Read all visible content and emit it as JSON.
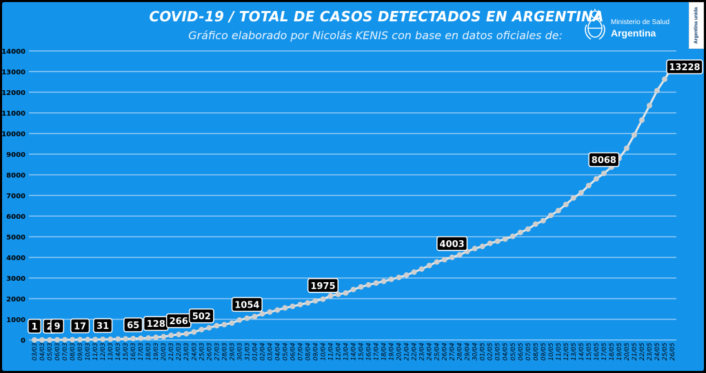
{
  "header": {
    "title": "COVID-19  /  TOTAL DE CASOS DETECTADOS EN ARGENTINA",
    "subtitle": "Gráfico elaborado por Nicolás KENIS con base en datos oficiales de:"
  },
  "ministry": {
    "line1": "Ministerio de Salud",
    "line2": "Argentina",
    "emblem_icon": "argentina-coat-of-arms-icon"
  },
  "badge": {
    "text": "Argentina unida"
  },
  "colors": {
    "background": "#1493ea",
    "gridline": "#cfe6fb",
    "line": "#e6e6e6",
    "marker": "#cfcfcf",
    "callout_bg": "#000000",
    "callout_text": "#ffffff"
  },
  "chart_data": {
    "type": "line",
    "title": "COVID-19  /  TOTAL DE CASOS DETECTADOS EN ARGENTINA",
    "xlabel": "",
    "ylabel": "",
    "ylim": [
      0,
      14000
    ],
    "yticks": [
      0,
      1000,
      2000,
      3000,
      4000,
      5000,
      6000,
      7000,
      8000,
      9000,
      10000,
      11000,
      12000,
      13000,
      14000
    ],
    "grid": true,
    "legend": "none",
    "x": [
      "03/03",
      "04/03",
      "05/03",
      "06/03",
      "07/03",
      "08/03",
      "09/03",
      "10/03",
      "11/03",
      "12/03",
      "13/03",
      "14/03",
      "15/03",
      "16/03",
      "17/03",
      "18/03",
      "19/03",
      "20/03",
      "21/03",
      "22/03",
      "23/03",
      "24/03",
      "25/03",
      "26/03",
      "27/03",
      "28/03",
      "29/03",
      "30/03",
      "31/03",
      "01/04",
      "02/04",
      "03/04",
      "04/04",
      "05/04",
      "06/04",
      "07/04",
      "08/04",
      "09/04",
      "10/04",
      "11/04",
      "12/04",
      "13/04",
      "14/04",
      "15/04",
      "16/04",
      "17/04",
      "18/04",
      "19/04",
      "20/04",
      "21/04",
      "22/04",
      "23/04",
      "24/04",
      "25/04",
      "26/04",
      "27/04",
      "28/04",
      "29/04",
      "30/04",
      "01/05",
      "02/05",
      "03/05",
      "04/05",
      "05/05",
      "06/05",
      "07/05",
      "08/05",
      "09/05",
      "10/05",
      "11/05",
      "12/05",
      "13/05",
      "14/05",
      "15/05",
      "16/05",
      "17/05",
      "18/05",
      "19/05",
      "20/05",
      "21/05",
      "22/05",
      "23/05",
      "24/05",
      "25/05",
      "26/05"
    ],
    "series": [
      {
        "values": [
          1,
          1,
          2,
          9,
          9,
          12,
          17,
          19,
          21,
          31,
          34,
          45,
          56,
          65,
          79,
          97,
          128,
          158,
          225,
          266,
          301,
          387,
          502,
          589,
          690,
          745,
          820,
          966,
          1054,
          1133,
          1265,
          1353,
          1451,
          1554,
          1628,
          1715,
          1795,
          1894,
          1975,
          2142,
          2208,
          2277,
          2443,
          2571,
          2669,
          2758,
          2839,
          2941,
          3031,
          3144,
          3288,
          3435,
          3607,
          3780,
          3892,
          4003,
          4127,
          4285,
          4428,
          4532,
          4681,
          4783,
          4887,
          5020,
          5208,
          5371,
          5611,
          5776,
          6034,
          6265,
          6563,
          6879,
          7134,
          7479,
          7805,
          8068,
          8371,
          8796,
          9283,
          9931,
          10649,
          11353,
          12076,
          12628,
          13228
        ]
      }
    ],
    "callouts": [
      {
        "x": "03/03",
        "label": "1"
      },
      {
        "x": "05/03",
        "label": "2"
      },
      {
        "x": "06/03",
        "label": "9"
      },
      {
        "x": "09/03",
        "label": "17"
      },
      {
        "x": "12/03",
        "label": "31"
      },
      {
        "x": "16/03",
        "label": "65"
      },
      {
        "x": "19/03",
        "label": "128"
      },
      {
        "x": "22/03",
        "label": "266"
      },
      {
        "x": "25/03",
        "label": "502"
      },
      {
        "x": "31/03",
        "label": "1054"
      },
      {
        "x": "10/04",
        "label": "1975"
      },
      {
        "x": "27/04",
        "label": "4003"
      },
      {
        "x": "17/05",
        "label": "8068"
      },
      {
        "x": "26/05",
        "label": "13228"
      }
    ]
  }
}
